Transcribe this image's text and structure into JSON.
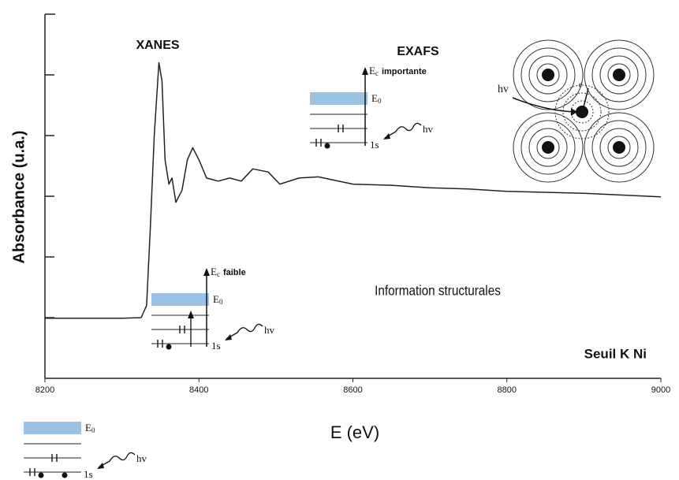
{
  "chart_data": {
    "type": "line",
    "x_label": "E (eV)",
    "y_label": "Absorbance (u.a.)",
    "x": [
      8200,
      8300,
      8325,
      8332,
      8337,
      8342,
      8348,
      8352,
      8356,
      8361,
      8365,
      8370,
      8378,
      8385,
      8392,
      8400,
      8410,
      8425,
      8440,
      8455,
      8470,
      8490,
      8505,
      8530,
      8555,
      8600,
      8650,
      8700,
      8750,
      8800,
      8900,
      9000
    ],
    "series": [
      {
        "color": "#222222",
        "values": [
          0.99,
          0.99,
          1.0,
          1.2,
          2.5,
          4.0,
          5.2,
          4.9,
          3.6,
          3.2,
          3.3,
          2.9,
          3.1,
          3.6,
          3.8,
          3.6,
          3.3,
          3.25,
          3.3,
          3.25,
          3.45,
          3.4,
          3.2,
          3.3,
          3.32,
          3.2,
          3.18,
          3.14,
          3.12,
          3.08,
          3.05,
          2.99
        ]
      }
    ],
    "xlim": [
      8200,
      9000
    ],
    "xticks": [
      8200,
      8400,
      8600,
      8800,
      9000
    ],
    "ylim": [
      0,
      6
    ],
    "yticks": [
      1,
      2,
      3,
      4,
      5
    ],
    "annotations": {
      "xanes": "XANES",
      "exafs": "EXAFS",
      "info": "Information structurales",
      "edge": "Seuil K Ni",
      "photon": "hv",
      "electron": "e"
    },
    "diagrams": [
      {
        "e0": "E",
        "e0_sub": "0",
        "ec": "E",
        "ec_sub": "c",
        "ec_label": "faible",
        "core": "1s",
        "photon": "hv"
      },
      {
        "e0": "E",
        "e0_sub": "0",
        "ec": "E",
        "ec_sub": "c",
        "ec_label": "importante",
        "core": "1s",
        "photon": "hv"
      },
      {
        "e0": "E",
        "e0_sub": "0",
        "core": "1s",
        "photon": "hv"
      }
    ]
  }
}
